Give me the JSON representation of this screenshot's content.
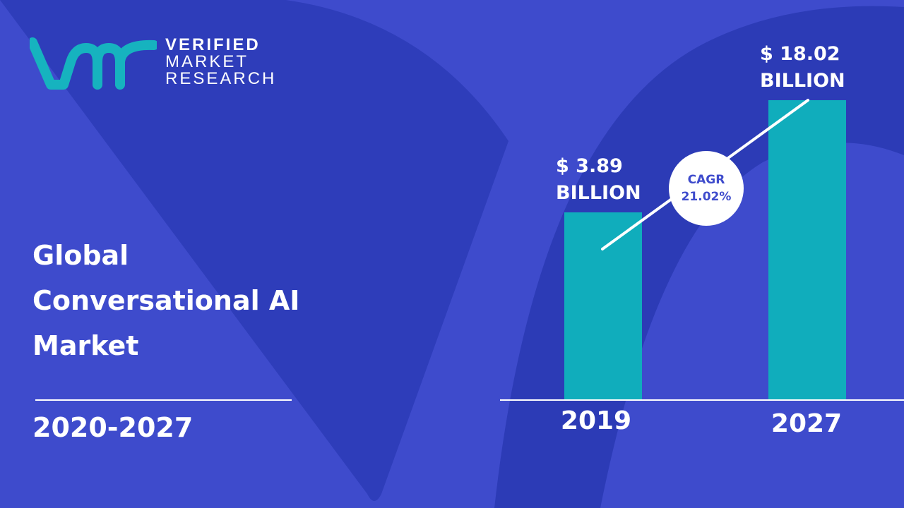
{
  "brand": {
    "logo_mark": "vmr",
    "line1": "VERIFIED",
    "line2": "MARKET",
    "line3": "RESEARCH"
  },
  "title_lines": [
    "Global",
    "Conversational AI",
    "Market"
  ],
  "period": "2020-2027",
  "colors": {
    "background": "#3e4bcc",
    "shape": "#2c3bb6",
    "bar": "#10adbc",
    "logo": "#16b3bf"
  },
  "chart_data": {
    "type": "bar",
    "categories": [
      "2019",
      "2027"
    ],
    "values": [
      3.89,
      18.02
    ],
    "unit": "USD billion",
    "data_labels": [
      {
        "line1": "$ 3.89",
        "line2": "BILLION"
      },
      {
        "line1": "$ 18.02",
        "line2": "BILLION"
      }
    ],
    "annotation": {
      "label": "CAGR",
      "value": "21.02%"
    }
  }
}
